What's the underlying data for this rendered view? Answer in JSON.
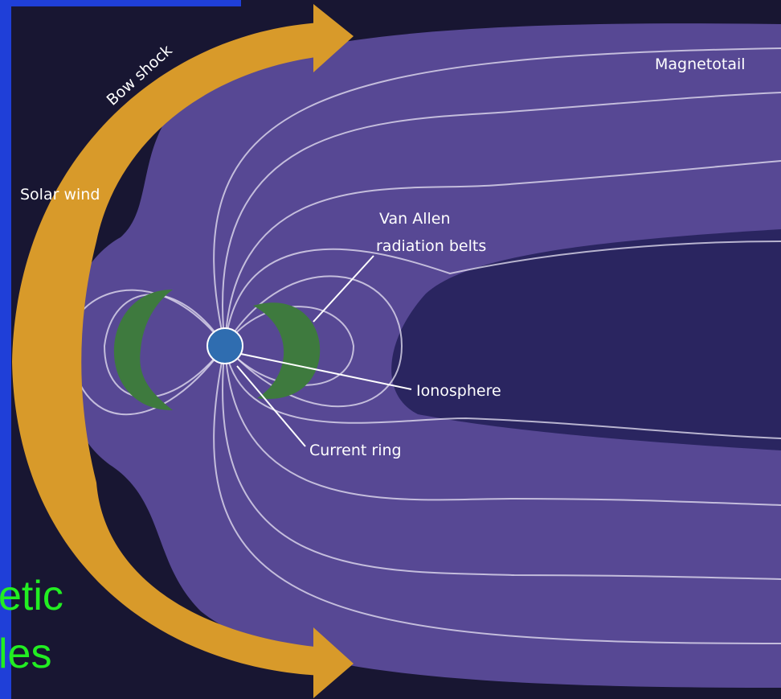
{
  "labels": {
    "bow_shock": "Bow shock",
    "solar_wind": "Solar wind",
    "magnetotail": "Magnetotail",
    "van_allen": [
      "Van Allen",
      "radiation belts"
    ],
    "ionosphere": "Ionosphere",
    "current_ring": "Current ring"
  },
  "slide_text": [
    "etic",
    "les"
  ]
}
